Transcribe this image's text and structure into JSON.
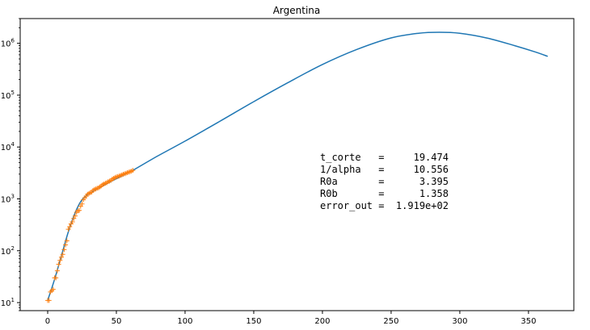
{
  "chart_data": {
    "type": "line",
    "title": "Argentina",
    "xlabel": "",
    "ylabel": "",
    "xlim": [
      -20,
      383
    ],
    "ylim": [
      7,
      3000000
    ],
    "yscale": "log",
    "grid": false,
    "x_ticks": [
      0,
      50,
      100,
      150,
      200,
      250,
      300,
      350
    ],
    "y_ticks": [
      {
        "value": 10,
        "base": "10",
        "exp": "1"
      },
      {
        "value": 100,
        "base": "10",
        "exp": "2"
      },
      {
        "value": 1000,
        "base": "10",
        "exp": "3"
      },
      {
        "value": 10000,
        "base": "10",
        "exp": "4"
      },
      {
        "value": 100000,
        "base": "10",
        "exp": "5"
      },
      {
        "value": 1000000,
        "base": "10",
        "exp": "6"
      }
    ],
    "series": [
      {
        "kind": "line",
        "color": "#1f77b4",
        "points": [
          [
            0,
            11
          ],
          [
            5,
            28
          ],
          [
            10,
            80
          ],
          [
            15,
            230
          ],
          [
            20,
            540
          ],
          [
            24,
            880
          ],
          [
            28,
            1150
          ],
          [
            35,
            1500
          ],
          [
            45,
            2100
          ],
          [
            55,
            2850
          ],
          [
            62,
            3550
          ],
          [
            80,
            6700
          ],
          [
            100,
            13000
          ],
          [
            125,
            31000
          ],
          [
            150,
            75000
          ],
          [
            175,
            175000
          ],
          [
            200,
            390000
          ],
          [
            225,
            760000
          ],
          [
            250,
            1270000
          ],
          [
            270,
            1560000
          ],
          [
            285,
            1630000
          ],
          [
            300,
            1560000
          ],
          [
            320,
            1260000
          ],
          [
            340,
            900000
          ],
          [
            355,
            680000
          ],
          [
            364,
            560000
          ]
        ]
      },
      {
        "kind": "scatter",
        "marker": "+",
        "color": "#ff7f0e",
        "points": [
          [
            0,
            11
          ],
          [
            1,
            11
          ],
          [
            2,
            16
          ],
          [
            3,
            17
          ],
          [
            4,
            18
          ],
          [
            5,
            30
          ],
          [
            6,
            30
          ],
          [
            7,
            41
          ],
          [
            8,
            55
          ],
          [
            9,
            65
          ],
          [
            10,
            75
          ],
          [
            11,
            85
          ],
          [
            12,
            105
          ],
          [
            13,
            130
          ],
          [
            14,
            155
          ],
          [
            15,
            260
          ],
          [
            16,
            290
          ],
          [
            17,
            330
          ],
          [
            18,
            360
          ],
          [
            19,
            420
          ],
          [
            20,
            470
          ],
          [
            21,
            550
          ],
          [
            22,
            590
          ],
          [
            23,
            600
          ],
          [
            24,
            720
          ],
          [
            25,
            800
          ],
          [
            26,
            960
          ],
          [
            27,
            1050
          ],
          [
            28,
            1130
          ],
          [
            29,
            1230
          ],
          [
            30,
            1270
          ],
          [
            31,
            1320
          ],
          [
            32,
            1350
          ],
          [
            33,
            1450
          ],
          [
            34,
            1520
          ],
          [
            35,
            1550
          ],
          [
            36,
            1600
          ],
          [
            37,
            1630
          ],
          [
            38,
            1700
          ],
          [
            39,
            1780
          ],
          [
            40,
            1880
          ],
          [
            41,
            1940
          ],
          [
            42,
            2000
          ],
          [
            43,
            2050
          ],
          [
            44,
            2150
          ],
          [
            45,
            2200
          ],
          [
            46,
            2270
          ],
          [
            47,
            2400
          ],
          [
            48,
            2480
          ],
          [
            49,
            2570
          ],
          [
            50,
            2650
          ],
          [
            51,
            2700
          ],
          [
            52,
            2750
          ],
          [
            53,
            2830
          ],
          [
            54,
            2900
          ],
          [
            55,
            2980
          ],
          [
            56,
            3050
          ],
          [
            57,
            3120
          ],
          [
            58,
            3200
          ],
          [
            59,
            3280
          ],
          [
            60,
            3350
          ],
          [
            61,
            3430
          ],
          [
            62,
            3550
          ]
        ]
      }
    ],
    "annotation": {
      "lines": [
        "t_corte   =     19.474",
        "1/alpha   =     10.556",
        "R0a       =      3.395",
        "R0b       =      1.358",
        "error_out =  1.919e+02"
      ]
    }
  }
}
